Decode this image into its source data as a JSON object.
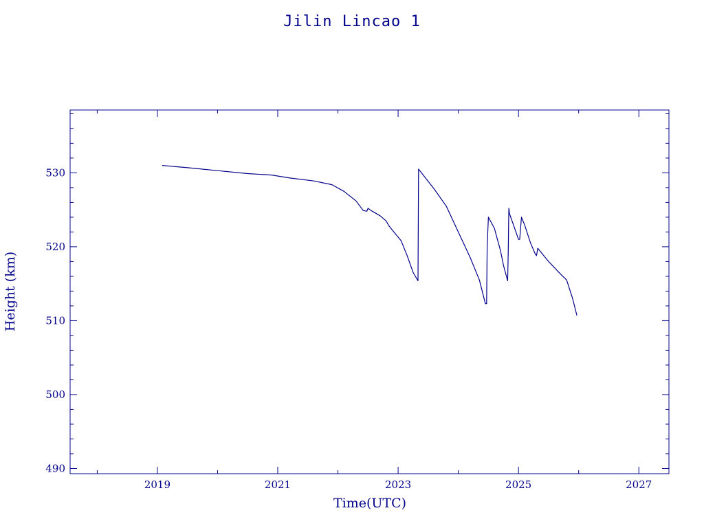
{
  "chart_data": {
    "type": "line",
    "title": "Jilin Lincao 1",
    "xlabel": "Time(UTC)",
    "ylabel": "Height (km)",
    "xlim": [
      2017.55,
      2027.5
    ],
    "ylim": [
      489.3,
      538.5
    ],
    "x_ticks": [
      "2019",
      "2021",
      "2023",
      "2025",
      "2027"
    ],
    "y_ticks": [
      "490",
      "500",
      "510",
      "520",
      "530"
    ],
    "grid": false,
    "color": "#00008b",
    "series": [
      {
        "x": [
          2019.08,
          2019.5,
          2020.0,
          2020.5,
          2020.9,
          2021.2,
          2021.6,
          2021.9,
          2022.1,
          2022.3,
          2022.42,
          2022.48,
          2022.5,
          2022.55,
          2022.7,
          2022.8,
          2022.85,
          2022.95,
          2023.05,
          2023.15,
          2023.25,
          2023.33,
          2023.34,
          2023.6,
          2023.8,
          2024.0,
          2024.2,
          2024.35,
          2024.45,
          2024.47,
          2024.48,
          2024.5,
          2024.6,
          2024.7,
          2024.75,
          2024.8,
          2024.82,
          2024.83,
          2024.84,
          2024.85,
          2025.0,
          2025.02,
          2025.05,
          2025.1,
          2025.2,
          2025.28,
          2025.3,
          2025.32,
          2025.5,
          2025.7,
          2025.8,
          2025.9,
          2025.97
        ],
        "y": [
          531.0,
          530.7,
          530.3,
          529.9,
          529.7,
          529.3,
          528.9,
          528.4,
          527.5,
          526.2,
          524.9,
          524.8,
          525.2,
          524.9,
          524.2,
          523.5,
          522.8,
          521.8,
          520.8,
          518.8,
          516.5,
          515.4,
          530.5,
          527.8,
          525.5,
          522.0,
          518.5,
          515.5,
          512.3,
          512.3,
          520.0,
          524.0,
          522.5,
          519.5,
          517.5,
          516.0,
          515.4,
          519.5,
          525.2,
          524.5,
          521.0,
          521.0,
          524.0,
          523.0,
          520.5,
          519.0,
          518.8,
          519.8,
          518.0,
          516.3,
          515.5,
          513.0,
          510.7
        ]
      }
    ]
  }
}
